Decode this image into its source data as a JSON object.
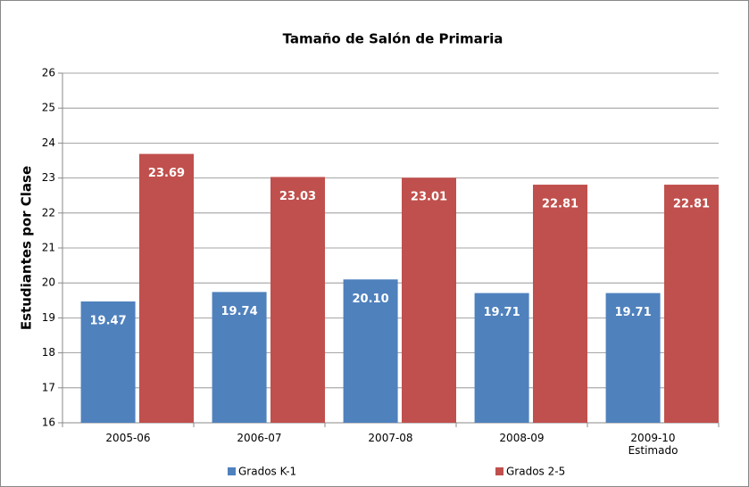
{
  "chart_data": {
    "type": "bar",
    "title": "Tamaño de Salón de Primaria",
    "y_label": "Estudiantes por Clase",
    "categories": [
      "2005-06",
      "2006-07",
      "2007-08",
      "2008-09",
      "2009-10\nEstimado"
    ],
    "series": [
      {
        "name": "Grados K-1",
        "color": "#4f81bd",
        "values": [
          19.47,
          19.74,
          20.1,
          19.71,
          19.71
        ],
        "value_labels": [
          "19.47",
          "19.74",
          "20.10",
          "19.71",
          "19.71"
        ]
      },
      {
        "name": "Grados 2-5",
        "color": "#c0504d",
        "values": [
          23.69,
          23.03,
          23.01,
          22.81,
          22.81
        ],
        "value_labels": [
          "23.69",
          "23.03",
          "23.01",
          "22.81",
          "22.81"
        ]
      }
    ],
    "ylim": [
      16,
      26
    ],
    "yticks": [
      16,
      17,
      18,
      19,
      20,
      21,
      22,
      23,
      24,
      25,
      26
    ],
    "grid": true,
    "legend": "bottom"
  }
}
